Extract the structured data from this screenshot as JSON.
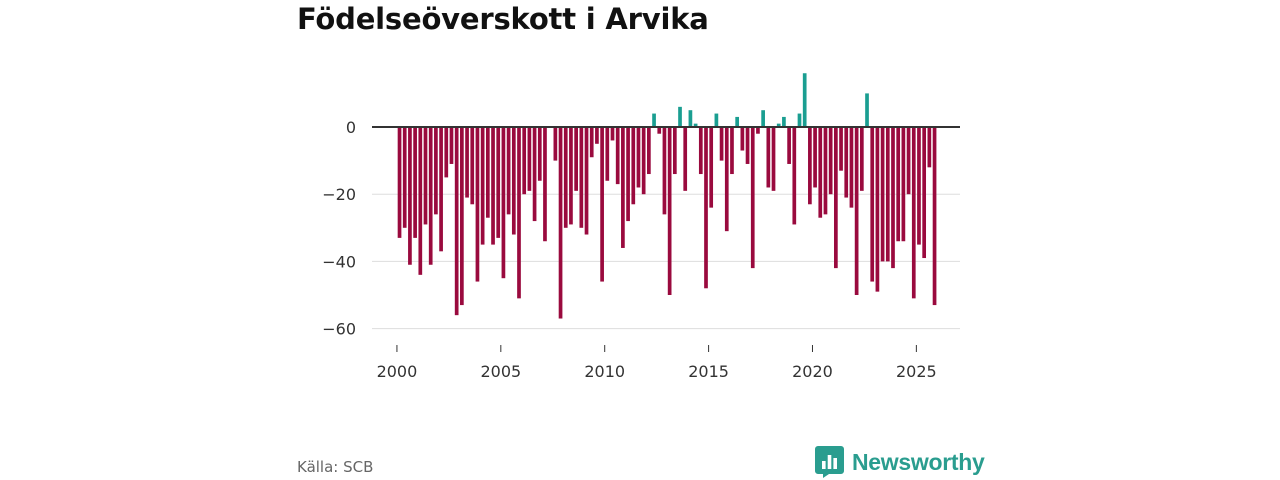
{
  "title": "Födelseöverskott i Arvika",
  "source": "Källa: SCB",
  "brand": "Newsworthy",
  "colors": {
    "negative": "#9a0a3e",
    "positive": "#1a9e91",
    "grid": "#dddddd",
    "zero_line": "#333333",
    "brand": "#2a9d8f"
  },
  "chart_data": {
    "type": "bar",
    "title": "Födelseöverskott i Arvika",
    "xlabel": "",
    "ylabel": "",
    "ylim": [
      -65,
      20
    ],
    "xlim": [
      1998.8,
      2027.1
    ],
    "grid": true,
    "yticks": [
      0,
      -20,
      -40,
      -60
    ],
    "ytick_labels": [
      "0",
      "−20",
      "−40",
      "−60"
    ],
    "xticks": [
      2000,
      2005,
      2010,
      2015,
      2020,
      2025
    ],
    "xtick_labels": [
      "2000",
      "2005",
      "2010",
      "2015",
      "2020",
      "2025"
    ],
    "frequency": "quarterly",
    "start": "2000 Q1",
    "values": [
      -33,
      -30,
      -41,
      -33,
      -44,
      -29,
      -41,
      -26,
      -37,
      -15,
      -11,
      -56,
      -53,
      -21,
      -23,
      -46,
      -35,
      -27,
      -35,
      -33,
      -45,
      -26,
      -32,
      -51,
      -20,
      -19,
      -28,
      -16,
      -34,
      0,
      -10,
      -57,
      -30,
      -29,
      -19,
      -30,
      -32,
      -9,
      -5,
      -46,
      -16,
      -4,
      -17,
      -36,
      -28,
      -23,
      -18,
      -20,
      -14,
      4,
      -2,
      -26,
      -50,
      -14,
      6,
      -19,
      5,
      1,
      -14,
      -48,
      -24,
      4,
      -10,
      -31,
      -14,
      3,
      -7,
      -11,
      -42,
      -2,
      5,
      -18,
      -19,
      1,
      3,
      -11,
      -29,
      4,
      16,
      -23,
      -18,
      -27,
      -26,
      -20,
      -42,
      -13,
      -21,
      -24,
      -50,
      -19,
      10,
      -46,
      -49,
      -40,
      -40,
      -42,
      -34,
      -34,
      -20,
      -51,
      -35,
      -39,
      -12,
      -53
    ]
  }
}
